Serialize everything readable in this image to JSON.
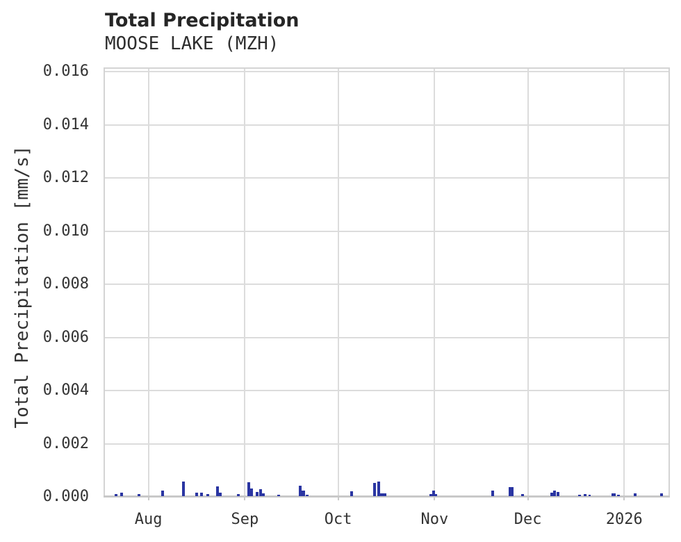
{
  "header": {
    "title": "Total Precipitation",
    "subtitle": "MOOSE LAKE (MZH)"
  },
  "colors": {
    "bar": "#2a35a2",
    "grid": "#dcdcdc",
    "axis": "#c9c9c9",
    "border": "#d4d4d4",
    "tick_text": "#333333",
    "title_text": "#262626",
    "background": "#ffffff"
  },
  "chart_data": {
    "type": "bar",
    "title": "Total Precipitation",
    "subtitle": "MOOSE LAKE (MZH)",
    "xlabel": "",
    "ylabel": "Total Precipitation [mm/s]",
    "ylim": [
      0,
      0.0161
    ],
    "x_range": [
      "2025-07-18",
      "2026-01-15"
    ],
    "grid": true,
    "legend": false,
    "bar_color": "#2a35a2",
    "yticks": [
      {
        "label": "0.000",
        "value": 0.0
      },
      {
        "label": "0.002",
        "value": 0.002
      },
      {
        "label": "0.004",
        "value": 0.004
      },
      {
        "label": "0.006",
        "value": 0.006
      },
      {
        "label": "0.008",
        "value": 0.008
      },
      {
        "label": "0.010",
        "value": 0.01
      },
      {
        "label": "0.012",
        "value": 0.012
      },
      {
        "label": "0.014",
        "value": 0.014
      },
      {
        "label": "0.016",
        "value": 0.016
      }
    ],
    "xticks": [
      {
        "label": "Aug",
        "day": 14
      },
      {
        "label": "Sep",
        "day": 45
      },
      {
        "label": "Oct",
        "day": 75
      },
      {
        "label": "Nov",
        "day": 106
      },
      {
        "label": "Dec",
        "day": 136
      },
      {
        "label": "2026",
        "day": 167
      }
    ],
    "points": [
      {
        "date": "2025-07-21",
        "day": 3.5,
        "value": 9e-05
      },
      {
        "date": "2025-07-23",
        "day": 5.4,
        "value": 0.00014
      },
      {
        "date": "2025-07-29",
        "day": 10.9,
        "value": 9e-05
      },
      {
        "date": "2025-08-05",
        "day": 18.5,
        "value": 0.00021
      },
      {
        "date": "2025-08-12",
        "day": 25.2,
        "value": 0.00056
      },
      {
        "date": "2025-08-16",
        "day": 29.4,
        "value": 0.00014
      },
      {
        "date": "2025-08-18",
        "day": 31.0,
        "value": 0.00014
      },
      {
        "date": "2025-08-20",
        "day": 33.1,
        "value": 7e-05
      },
      {
        "date": "2025-08-23",
        "day": 36.1,
        "value": 0.00037
      },
      {
        "date": "2025-08-24",
        "day": 37.0,
        "value": 0.00014
      },
      {
        "date": "2025-08-30",
        "day": 43.0,
        "value": 9e-05
      },
      {
        "date": "2025-09-02",
        "day": 46.2,
        "value": 0.00052
      },
      {
        "date": "2025-09-03",
        "day": 47.1,
        "value": 0.00029
      },
      {
        "date": "2025-09-05",
        "day": 48.9,
        "value": 0.00016
      },
      {
        "date": "2025-09-06",
        "day": 50.1,
        "value": 0.00026
      },
      {
        "date": "2025-09-07",
        "day": 51.0,
        "value": 0.0001
      },
      {
        "date": "2025-09-12",
        "day": 55.9,
        "value": 5e-05
      },
      {
        "date": "2025-09-19",
        "day": 62.9,
        "value": 0.0004
      },
      {
        "date": "2025-09-20",
        "day": 63.8,
        "value": 0.0002
      },
      {
        "date": "2025-09-21",
        "day": 65.0,
        "value": 5e-05
      },
      {
        "date": "2025-10-05",
        "day": 79.3,
        "value": 0.00017
      },
      {
        "date": "2025-10-13",
        "day": 86.6,
        "value": 0.00049
      },
      {
        "date": "2025-10-14",
        "day": 88.0,
        "value": 0.00055
      },
      {
        "date": "2025-10-15",
        "day": 89.4,
        "value": 0.00011,
        "span": 2
      },
      {
        "date": "2025-10-31",
        "day": 104.8,
        "value": 8e-05
      },
      {
        "date": "2025-11-01",
        "day": 105.6,
        "value": 0.00022
      },
      {
        "date": "2025-11-02",
        "day": 106.4,
        "value": 8e-05
      },
      {
        "date": "2025-11-20",
        "day": 124.8,
        "value": 0.00022
      },
      {
        "date": "2025-11-26",
        "day": 130.6,
        "value": 0.00035,
        "span": 1.5
      },
      {
        "date": "2025-11-29",
        "day": 134.4,
        "value": 9e-05
      },
      {
        "date": "2025-12-09",
        "day": 143.7,
        "value": 0.00012
      },
      {
        "date": "2025-12-10",
        "day": 144.6,
        "value": 0.00022
      },
      {
        "date": "2025-12-11",
        "day": 145.6,
        "value": 0.00015
      },
      {
        "date": "2025-12-18",
        "day": 152.6,
        "value": 5e-05
      },
      {
        "date": "2025-12-20",
        "day": 154.5,
        "value": 8e-05
      },
      {
        "date": "2025-12-21",
        "day": 155.9,
        "value": 5e-05,
        "span": 0.7
      },
      {
        "date": "2025-12-29",
        "day": 163.6,
        "value": 0.00011,
        "span": 1.2
      },
      {
        "date": "2025-12-30",
        "day": 165.2,
        "value": 5e-05
      },
      {
        "date": "2026-01-05",
        "day": 170.5,
        "value": 0.0001
      },
      {
        "date": "2026-01-13",
        "day": 179.1,
        "value": 0.00011
      }
    ]
  }
}
